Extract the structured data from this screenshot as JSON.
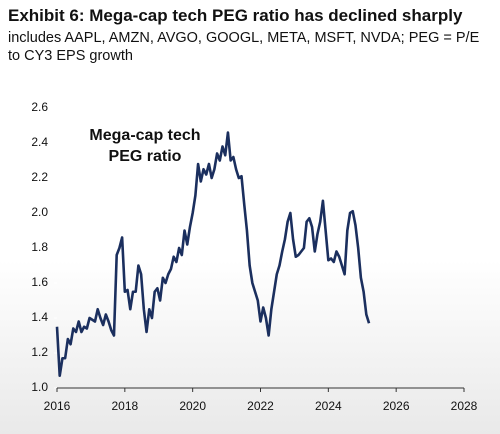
{
  "chart_data": {
    "type": "line",
    "title": "Exhibit 6: Mega-cap tech PEG ratio has declined sharply",
    "subtitle": "includes AAPL, AMZN, AVGO, GOOGL, META, MSFT, NVDA; PEG = P/E to CY3 EPS growth",
    "annotation": [
      "Mega-cap tech",
      "PEG ratio"
    ],
    "xlim": [
      2016,
      2028
    ],
    "xticks": [
      2016,
      2018,
      2020,
      2022,
      2024,
      2026,
      2028
    ],
    "ylim": [
      1.0,
      2.6
    ],
    "yticks": [
      {
        "value": 1.0,
        "label": "1.0"
      },
      1.2,
      1.4,
      1.6,
      1.8,
      {
        "value": 2.0,
        "label": "2.0"
      },
      2.2,
      2.4,
      2.6
    ],
    "grid": false,
    "x": [
      2016,
      2016.08,
      2016.16,
      2016.24,
      2016.32,
      2016.4,
      2016.48,
      2016.56,
      2016.64,
      2016.72,
      2016.8,
      2016.88,
      2016.96,
      2017.04,
      2017.12,
      2017.2,
      2017.28,
      2017.36,
      2017.44,
      2017.52,
      2017.6,
      2017.68,
      2017.76,
      2017.84,
      2017.92,
      2018,
      2018.08,
      2018.16,
      2018.24,
      2018.32,
      2018.4,
      2018.48,
      2018.56,
      2018.64,
      2018.72,
      2018.8,
      2018.88,
      2018.96,
      2019.04,
      2019.12,
      2019.2,
      2019.28,
      2019.36,
      2019.44,
      2019.52,
      2019.6,
      2019.68,
      2019.76,
      2019.84,
      2019.92,
      2020,
      2020.08,
      2020.16,
      2020.24,
      2020.32,
      2020.4,
      2020.48,
      2020.56,
      2020.64,
      2020.72,
      2020.8,
      2020.88,
      2020.96,
      2021.04,
      2021.12,
      2021.2,
      2021.28,
      2021.36,
      2021.44,
      2021.52,
      2021.6,
      2021.68,
      2021.76,
      2021.84,
      2021.92,
      2022,
      2022.08,
      2022.16,
      2022.24,
      2022.32,
      2022.4,
      2022.48,
      2022.56,
      2022.64,
      2022.72,
      2022.8,
      2022.88,
      2022.96,
      2023.04,
      2023.12,
      2023.2,
      2023.28,
      2023.36,
      2023.44,
      2023.52,
      2023.6,
      2023.68,
      2023.76,
      2023.84,
      2023.92,
      2024,
      2024.08,
      2024.16,
      2024.24,
      2024.32,
      2024.4,
      2024.48,
      2024.56,
      2024.64,
      2024.72,
      2024.8,
      2024.88,
      2024.96,
      2025.04,
      2025.12,
      2025.2
    ],
    "series": [
      {
        "name": "Mega-cap tech PEG ratio",
        "color": "#1b2f5e",
        "values": [
          1.35,
          1.07,
          1.17,
          1.17,
          1.28,
          1.25,
          1.34,
          1.32,
          1.38,
          1.32,
          1.35,
          1.34,
          1.4,
          1.39,
          1.38,
          1.45,
          1.4,
          1.36,
          1.42,
          1.38,
          1.33,
          1.3,
          1.76,
          1.8,
          1.86,
          1.55,
          1.56,
          1.45,
          1.55,
          1.55,
          1.7,
          1.65,
          1.45,
          1.32,
          1.45,
          1.4,
          1.55,
          1.57,
          1.5,
          1.63,
          1.6,
          1.65,
          1.68,
          1.75,
          1.72,
          1.8,
          1.76,
          1.9,
          1.82,
          1.92,
          2.0,
          2.1,
          2.28,
          2.18,
          2.25,
          2.22,
          2.28,
          2.2,
          2.25,
          2.34,
          2.3,
          2.38,
          2.33,
          2.46,
          2.3,
          2.32,
          2.25,
          2.2,
          2.21,
          2.05,
          1.9,
          1.7,
          1.6,
          1.55,
          1.5,
          1.38,
          1.46,
          1.4,
          1.3,
          1.45,
          1.55,
          1.65,
          1.7,
          1.78,
          1.85,
          1.95,
          2.0,
          1.85,
          1.75,
          1.76,
          1.78,
          1.8,
          1.95,
          1.97,
          1.92,
          1.78,
          1.88,
          1.95,
          2.07,
          1.9,
          1.73,
          1.74,
          1.72,
          1.78,
          1.75,
          1.7,
          1.65,
          1.9,
          2.0,
          2.01,
          1.93,
          1.8,
          1.63,
          1.55,
          1.42,
          1.37
        ]
      }
    ]
  }
}
